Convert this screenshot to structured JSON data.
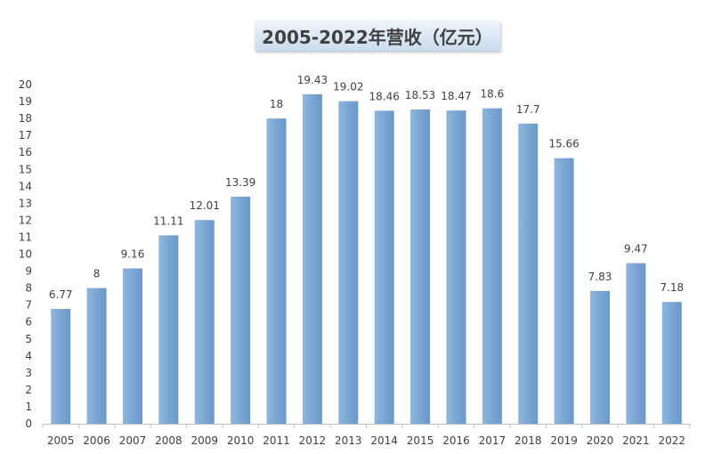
{
  "chart_data": {
    "type": "bar",
    "title": "2005-2022年营收（亿元）",
    "categories": [
      "2005",
      "2006",
      "2007",
      "2008",
      "2009",
      "2010",
      "2011",
      "2012",
      "2013",
      "2014",
      "2015",
      "2016",
      "2017",
      "2018",
      "2019",
      "2020",
      "2021",
      "2022"
    ],
    "values": [
      6.77,
      8,
      9.16,
      11.11,
      12.01,
      13.39,
      18,
      19.43,
      19.02,
      18.46,
      18.53,
      18.47,
      18.6,
      17.7,
      15.66,
      7.83,
      9.47,
      7.18
    ],
    "yticks": [
      0,
      1,
      2,
      3,
      4,
      5,
      6,
      7,
      8,
      9,
      10,
      11,
      12,
      13,
      14,
      15,
      16,
      17,
      18,
      19,
      20
    ],
    "ylim": [
      0,
      20
    ],
    "xlabel": "",
    "ylabel": "",
    "grid": false,
    "legend": "none",
    "colors": {
      "bar": "#7ba7d4",
      "bar_light": "#9dc0e3",
      "axis": "#bfbfbf",
      "text": "#404040"
    }
  }
}
